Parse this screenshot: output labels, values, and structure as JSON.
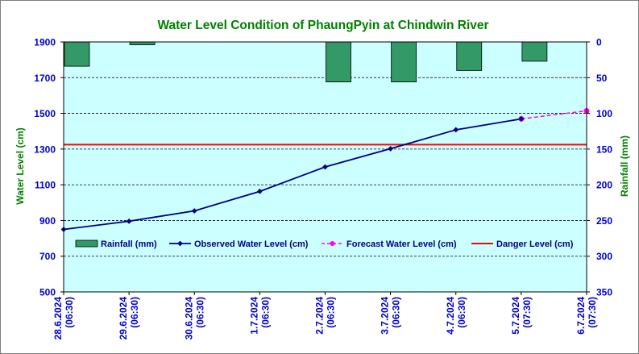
{
  "chart_data": {
    "type": "line",
    "title": "Water Level Condition of PhaungPyin at Chindwin River",
    "ylabel": "Water Level (cm)",
    "y2label": "Rainfall (mm)",
    "ylim": [
      500,
      1900
    ],
    "y2lim": [
      0,
      350
    ],
    "yticks": [
      "1900",
      "1700",
      "1500",
      "1300",
      "1100",
      "900",
      "700",
      "500"
    ],
    "y2ticks": [
      "0",
      "50",
      "100",
      "150",
      "200",
      "250",
      "300",
      "350"
    ],
    "y2_inverted": true,
    "categories": [
      [
        "28.6.2024",
        "(06:30)"
      ],
      [
        "29.6.2024",
        "(06:30)"
      ],
      [
        "30.6.2024",
        "(06:30)"
      ],
      [
        "1.7.2024",
        "(06:30)"
      ],
      [
        "2.7.2024",
        "(06:30)"
      ],
      [
        "3.7.2024",
        "(06:30)"
      ],
      [
        "4.7.2024",
        "(06:30)"
      ],
      [
        "5.7.2024",
        "(07:30)"
      ],
      [
        "6.7.2024",
        "(07:30)"
      ]
    ],
    "series": [
      {
        "name": "Rainfall (mm)",
        "kind": "bar",
        "axis": "y2",
        "color": "#339966",
        "values": [
          34,
          4,
          null,
          null,
          56,
          56,
          40,
          27,
          null
        ]
      },
      {
        "name": "Observed Water Level (cm)",
        "kind": "line",
        "axis": "y",
        "color": "#000080",
        "values": [
          850,
          896,
          954,
          1063,
          1200,
          1302,
          1408,
          1469,
          null
        ]
      },
      {
        "name": "Forecast Water Level (cm)",
        "kind": "line-dashed",
        "axis": "y",
        "color": "#ff00ff",
        "values": [
          null,
          null,
          null,
          null,
          null,
          null,
          null,
          1469,
          1514
        ]
      },
      {
        "name": "Danger Level (cm)",
        "kind": "hline",
        "axis": "y",
        "color": "#ff0000",
        "value": 1325
      }
    ],
    "grid": true,
    "legend": "inside-lower",
    "plot_background": "#ccffff",
    "colors": {
      "title": "#008000",
      "axis_labels": "#008000",
      "ticks": "#0000cc"
    }
  }
}
